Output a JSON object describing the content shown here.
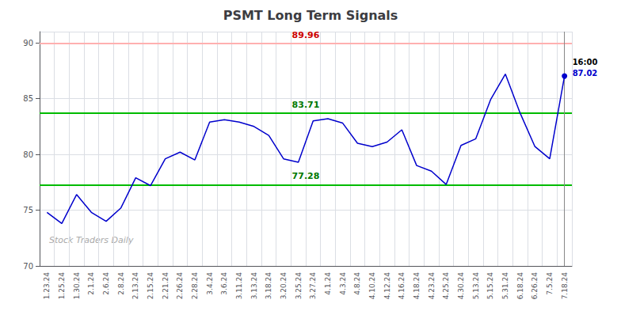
{
  "chart_data": {
    "type": "line",
    "title": "PSMT Long Term Signals",
    "categories": [
      "1.23.24",
      "1.25.24",
      "1.30.24",
      "2.1.24",
      "2.6.24",
      "2.8.24",
      "2.13.24",
      "2.15.24",
      "2.21.24",
      "2.26.24",
      "2.28.24",
      "3.4.24",
      "3.6.24",
      "3.11.24",
      "3.13.24",
      "3.18.24",
      "3.20.24",
      "3.25.24",
      "3.27.24",
      "4.1.24",
      "4.3.24",
      "4.8.24",
      "4.10.24",
      "4.12.24",
      "4.16.24",
      "4.18.24",
      "4.23.24",
      "4.25.24",
      "4.30.24",
      "5.13.24",
      "5.15.24",
      "5.31.24",
      "6.18.24",
      "6.26.24",
      "7.5.24",
      "7.18.24"
    ],
    "values": [
      74.8,
      73.8,
      76.4,
      74.8,
      74.0,
      75.2,
      77.9,
      77.2,
      79.6,
      80.2,
      79.5,
      82.9,
      83.1,
      82.9,
      82.5,
      81.7,
      79.6,
      79.3,
      83.0,
      83.2,
      82.8,
      81.0,
      80.7,
      81.1,
      82.2,
      79.0,
      78.5,
      77.3,
      80.8,
      81.4,
      84.9,
      87.2,
      83.7,
      80.7,
      79.6,
      87.02
    ],
    "color": "#0000cc",
    "ylim": [
      70,
      91
    ],
    "yticks": [
      70,
      75,
      80,
      85,
      90
    ],
    "grid": true,
    "annotations": [
      {
        "type": "hline",
        "y": 89.96,
        "text": "89.96",
        "color": "#ffb0b0",
        "text_color": "#cc0000"
      },
      {
        "type": "hline",
        "y": 83.71,
        "text": "83.71",
        "color": "#00bb00",
        "text_color": "#007700"
      },
      {
        "type": "hline",
        "y": 77.28,
        "text": "77.28",
        "color": "#00bb00",
        "text_color": "#007700"
      },
      {
        "type": "vline",
        "x": "7.18.24",
        "color": "#888888"
      },
      {
        "type": "point",
        "x": "7.18.24",
        "y": 87.02,
        "color": "#0000cc"
      },
      {
        "type": "text",
        "x": "7.18.24",
        "y": 87.02,
        "text": "16:00",
        "color": "#000000"
      },
      {
        "type": "text",
        "x": "7.18.24",
        "y": 87.02,
        "text": "87.02",
        "color": "#0000cc"
      },
      {
        "type": "watermark",
        "text": "Stock Traders Daily",
        "color": "#aaaaaa"
      }
    ]
  }
}
